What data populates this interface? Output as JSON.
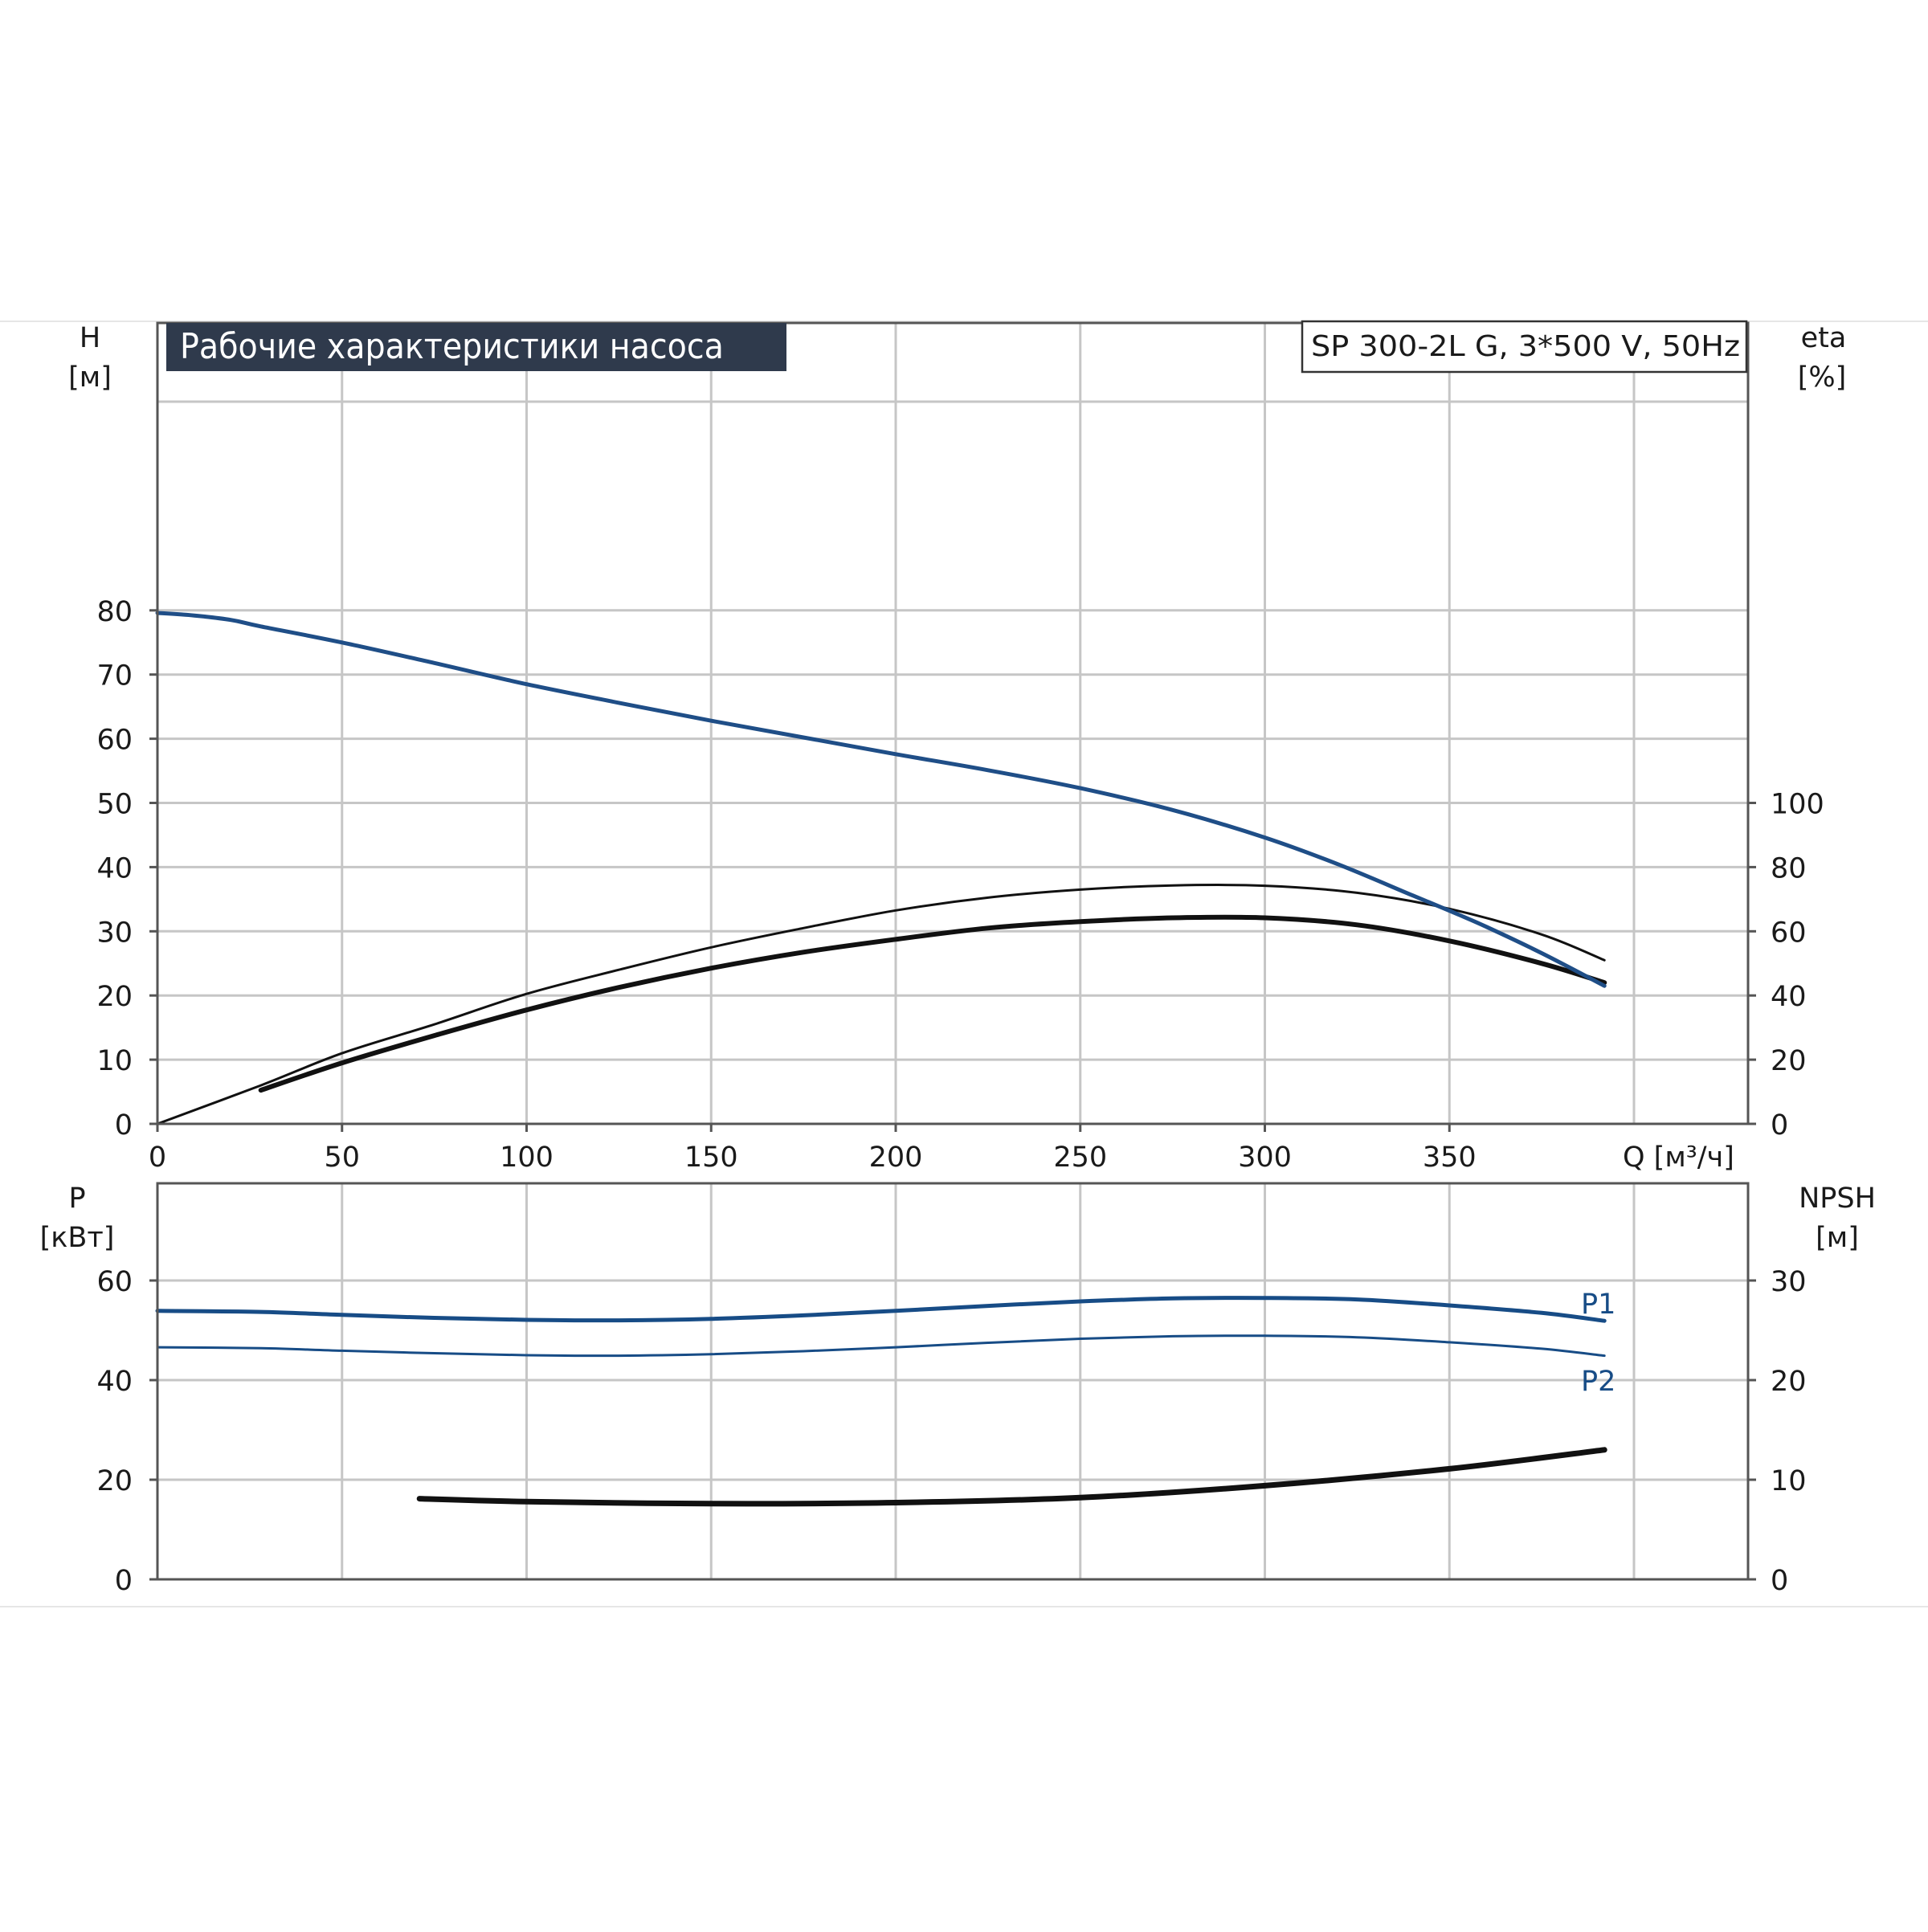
{
  "title": "Рабочие характеристики насоса",
  "model": "SP 300-2L G, 3*500 V, 50Hz",
  "colors": {
    "head": "#1f4e87",
    "eta": "#111111",
    "power": "#174c86",
    "npsh": "#111111",
    "title_bg": "#2f3a4c",
    "grid": "#c6c6c6"
  },
  "chart_data": [
    {
      "type": "line",
      "panel": "upper",
      "left_axis": {
        "label": "H",
        "unit": "[м]",
        "ticks": [
          "0",
          "10",
          "20",
          "30",
          "40",
          "50",
          "60",
          "70",
          "80"
        ],
        "ylim": [
          0,
          90
        ]
      },
      "right_axis": {
        "label": "eta",
        "unit": "[%]",
        "ticks": [
          "0",
          "20",
          "40",
          "60",
          "80",
          "100"
        ],
        "ylim": [
          0,
          180
        ]
      },
      "x_axis": {
        "label": "Q [м³/ч]",
        "ticks": [
          "0",
          "50",
          "100",
          "150",
          "200",
          "250",
          "300",
          "350"
        ],
        "xlim": [
          0,
          430
        ]
      },
      "grid": true,
      "series": [
        {
          "key": "head",
          "axis": "left",
          "color": "#1f4e87",
          "width": 5,
          "x": [
            0,
            10,
            20,
            28,
            50,
            75,
            100,
            125,
            150,
            175,
            200,
            225,
            250,
            275,
            300,
            320,
            340,
            350,
            360,
            375,
            392
          ],
          "y": [
            79.6,
            79.2,
            78.5,
            77.5,
            75.0,
            71.8,
            68.5,
            65.6,
            62.8,
            60.2,
            57.6,
            55.1,
            52.3,
            48.9,
            44.6,
            40.4,
            35.6,
            33.2,
            30.7,
            26.6,
            21.5
          ]
        },
        {
          "key": "eta_thin",
          "axis": "right",
          "color": "#111111",
          "width": 3,
          "x": [
            0,
            28,
            50,
            75,
            100,
            125,
            150,
            175,
            200,
            225,
            250,
            275,
            300,
            325,
            350,
            375,
            392
          ],
          "y": [
            0,
            12,
            22,
            31,
            40.5,
            48,
            55,
            61,
            66.5,
            70.5,
            73.0,
            74.3,
            74.2,
            72,
            67,
            59,
            51
          ]
        },
        {
          "key": "eta_thick",
          "axis": "right",
          "color": "#111111",
          "width": 6,
          "x": [
            28,
            50,
            75,
            100,
            125,
            150,
            175,
            200,
            225,
            250,
            275,
            300,
            325,
            350,
            375,
            392
          ],
          "y": [
            10.5,
            19,
            27.5,
            35.5,
            42.5,
            48.5,
            53.5,
            57.5,
            61,
            63,
            64.2,
            64.2,
            62,
            57,
            50,
            44
          ]
        }
      ]
    },
    {
      "type": "line",
      "panel": "lower",
      "left_axis": {
        "label": "P",
        "unit": "[кВт]",
        "ticks": [
          "0",
          "20",
          "40",
          "60"
        ],
        "ylim": [
          0,
          80
        ]
      },
      "right_axis": {
        "label": "NPSH",
        "unit": "[м]",
        "ticks": [
          "0",
          "10",
          "20",
          "30"
        ],
        "ylim": [
          0,
          40
        ]
      },
      "x_axis": {
        "xlim": [
          0,
          430
        ]
      },
      "grid": true,
      "series": [
        {
          "key": "P1",
          "name": "P1",
          "axis": "left",
          "color": "#174c86",
          "width": 5,
          "x": [
            0,
            28,
            50,
            75,
            100,
            125,
            150,
            175,
            200,
            225,
            250,
            275,
            300,
            325,
            350,
            375,
            392
          ],
          "y": [
            53.9,
            53.7,
            53.1,
            52.5,
            52.1,
            52.0,
            52.3,
            53.0,
            53.9,
            54.9,
            55.8,
            56.4,
            56.5,
            56.2,
            55.0,
            53.5,
            51.9
          ]
        },
        {
          "key": "P2",
          "name": "P2",
          "axis": "left",
          "color": "#174c86",
          "width": 3,
          "x": [
            0,
            28,
            50,
            75,
            100,
            125,
            150,
            175,
            200,
            225,
            250,
            275,
            300,
            325,
            350,
            375,
            392
          ],
          "y": [
            46.6,
            46.4,
            45.9,
            45.4,
            45.0,
            44.9,
            45.2,
            45.8,
            46.6,
            47.5,
            48.3,
            48.8,
            48.9,
            48.6,
            47.6,
            46.3,
            44.9
          ]
        },
        {
          "key": "NPSH",
          "axis": "right",
          "color": "#111111",
          "width": 7,
          "x": [
            71,
            100,
            150,
            200,
            250,
            300,
            350,
            392
          ],
          "y": [
            8.1,
            7.8,
            7.6,
            7.7,
            8.2,
            9.4,
            11.1,
            13.0
          ]
        }
      ]
    }
  ]
}
